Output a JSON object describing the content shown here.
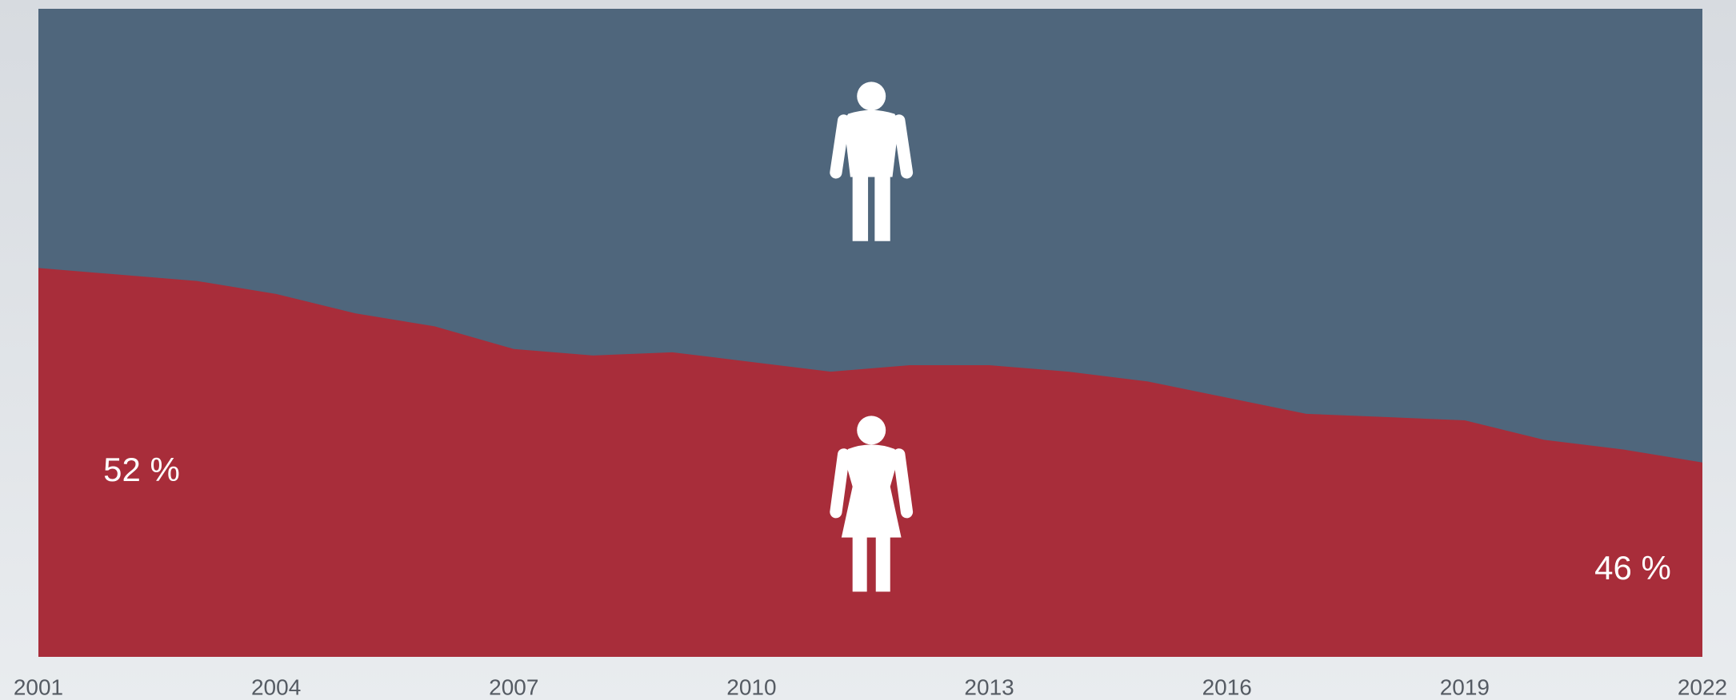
{
  "chart_data": {
    "type": "area",
    "x": [
      2001,
      2002,
      2003,
      2004,
      2005,
      2006,
      2007,
      2008,
      2009,
      2010,
      2011,
      2012,
      2013,
      2014,
      2015,
      2016,
      2017,
      2018,
      2019,
      2020,
      2021,
      2022
    ],
    "values": [
      52.0,
      51.8,
      51.6,
      51.2,
      50.6,
      50.2,
      49.5,
      49.3,
      49.4,
      49.1,
      48.8,
      49.0,
      49.0,
      48.8,
      48.5,
      48.0,
      47.5,
      47.4,
      47.3,
      46.7,
      46.4,
      46.0
    ],
    "value_labels": [
      "52 %",
      null,
      null,
      null,
      null,
      null,
      null,
      null,
      null,
      null,
      null,
      null,
      null,
      null,
      null,
      null,
      null,
      null,
      null,
      null,
      null,
      "46 %"
    ],
    "color": "#a82d3a",
    "background_color": "#4f667c",
    "xlim": [
      2001,
      2022
    ],
    "xticks": [
      2001,
      2004,
      2007,
      2010,
      2013,
      2016,
      2019,
      2022
    ],
    "ylim": [
      40,
      60
    ]
  }
}
